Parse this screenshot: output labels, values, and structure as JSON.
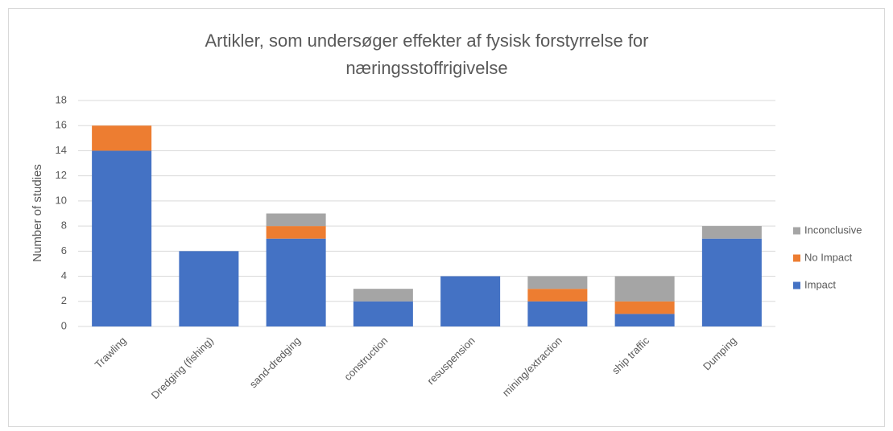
{
  "chart_data": {
    "type": "stacked_bar",
    "title": [
      "Artikler, som undersøger effekter af fysisk forstyrrelse for",
      "næringsstoffrigivelse"
    ],
    "y_label": "Number of studies",
    "categories": [
      "Trawling",
      "Dredging (fishing)",
      "sand-dredging",
      "construction",
      "resuspension",
      "mining/extraction",
      "ship traffic",
      "Dumping"
    ],
    "series": [
      {
        "name": "Impact",
        "color": "#4472c4",
        "values": [
          14,
          6,
          7,
          2,
          4,
          2,
          1,
          7
        ]
      },
      {
        "name": "No Impact",
        "color": "#ed7d31",
        "values": [
          2,
          0,
          1,
          0,
          0,
          1,
          1,
          0
        ]
      },
      {
        "name": "Inconclusive",
        "color": "#a5a5a5",
        "values": [
          0,
          0,
          1,
          1,
          0,
          1,
          2,
          1
        ]
      }
    ],
    "ylim": [
      0,
      18
    ],
    "yticks": [
      0,
      2,
      4,
      6,
      8,
      10,
      12,
      14,
      16,
      18
    ],
    "grid": true,
    "legend": "right"
  }
}
